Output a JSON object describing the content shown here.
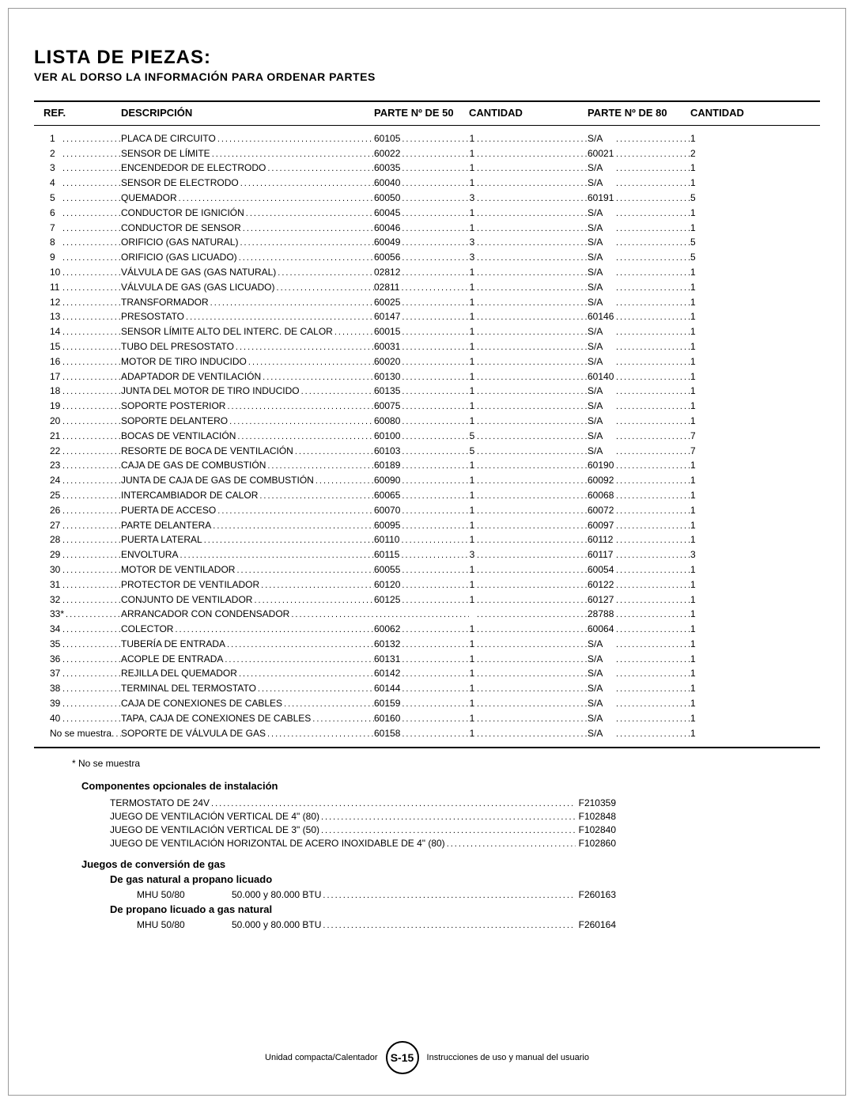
{
  "title": "LISTA DE PIEZAS:",
  "subtitle": "VER AL DORSO LA INFORMACIÓN PARA ORDENAR PARTES",
  "headers": {
    "ref": "REF.",
    "desc": "DESCRIPCIÓN",
    "p50": "PARTE Nº DE 50",
    "q50": "CANTIDAD",
    "p80": "PARTE Nº DE 80",
    "q80": "CANTIDAD"
  },
  "rows": [
    {
      "ref": "1",
      "desc": "PLACA DE CIRCUITO",
      "p50": "60105",
      "q50": "1",
      "p80": "S/A",
      "q80": "1"
    },
    {
      "ref": "2",
      "desc": "SENSOR DE LÍMITE",
      "p50": "60022",
      "q50": "1",
      "p80": "60021",
      "q80": "2"
    },
    {
      "ref": "3",
      "desc": "ENCENDEDOR DE ELECTRODO",
      "p50": "60035",
      "q50": "1",
      "p80": "S/A",
      "q80": "1"
    },
    {
      "ref": "4",
      "desc": "SENSOR DE ELECTRODO",
      "p50": "60040",
      "q50": "1",
      "p80": "S/A",
      "q80": "1"
    },
    {
      "ref": "5",
      "desc": "QUEMADOR",
      "p50": "60050",
      "q50": "3",
      "p80": "60191",
      "q80": "5"
    },
    {
      "ref": "6",
      "desc": "CONDUCTOR DE IGNICIÓN",
      "p50": "60045",
      "q50": "1",
      "p80": "S/A",
      "q80": "1"
    },
    {
      "ref": "7",
      "desc": "CONDUCTOR DE SENSOR",
      "p50": "60046",
      "q50": "1",
      "p80": "S/A",
      "q80": "1"
    },
    {
      "ref": "8",
      "desc": "ORIFICIO (GAS NATURAL)",
      "p50": "60049",
      "q50": "3",
      "p80": "S/A",
      "q80": "5"
    },
    {
      "ref": "9",
      "desc": "ORIFICIO (GAS LICUADO)",
      "p50": "60056",
      "q50": "3",
      "p80": "S/A",
      "q80": "5"
    },
    {
      "ref": "10",
      "desc": "VÁLVULA DE GAS (GAS NATURAL)",
      "p50": "02812",
      "q50": "1",
      "p80": "S/A",
      "q80": "1"
    },
    {
      "ref": "11",
      "desc": "VÁLVULA DE GAS (GAS LICUADO)",
      "p50": "02811",
      "q50": "1",
      "p80": "S/A",
      "q80": "1"
    },
    {
      "ref": "12",
      "desc": "TRANSFORMADOR",
      "p50": "60025",
      "q50": "1",
      "p80": "S/A",
      "q80": "1"
    },
    {
      "ref": "13",
      "desc": "PRESOSTATO",
      "p50": "60147",
      "q50": "1",
      "p80": "60146",
      "q80": "1"
    },
    {
      "ref": "14",
      "desc": "SENSOR LÍMITE ALTO DEL INTERC. DE CALOR",
      "p50": "60015",
      "q50": "1",
      "p80": "S/A",
      "q80": "1"
    },
    {
      "ref": "15",
      "desc": "TUBO DEL PRESOSTATO",
      "p50": "60031",
      "q50": "1",
      "p80": "S/A",
      "q80": "1"
    },
    {
      "ref": "16",
      "desc": "MOTOR DE TIRO INDUCIDO",
      "p50": "60020",
      "q50": "1",
      "p80": "S/A",
      "q80": "1"
    },
    {
      "ref": "17",
      "desc": "ADAPTADOR DE VENTILACIÓN",
      "p50": "60130",
      "q50": "1",
      "p80": "60140",
      "q80": "1"
    },
    {
      "ref": "18",
      "desc": "JUNTA DEL MOTOR DE TIRO INDUCIDO",
      "p50": "60135",
      "q50": "1",
      "p80": "S/A",
      "q80": "1"
    },
    {
      "ref": "19",
      "desc": "SOPORTE POSTERIOR",
      "p50": "60075",
      "q50": "1",
      "p80": "S/A",
      "q80": "1"
    },
    {
      "ref": "20",
      "desc": "SOPORTE DELANTERO",
      "p50": "60080",
      "q50": "1",
      "p80": "S/A",
      "q80": "1"
    },
    {
      "ref": "21",
      "desc": "BOCAS DE VENTILACIÓN",
      "p50": "60100",
      "q50": "5",
      "p80": "S/A",
      "q80": "7"
    },
    {
      "ref": "22",
      "desc": "RESORTE DE BOCA DE VENTILACIÓN",
      "p50": "60103",
      "q50": "5",
      "p80": "S/A",
      "q80": "7"
    },
    {
      "ref": "23",
      "desc": "CAJA DE GAS DE COMBUSTIÓN",
      "p50": "60189",
      "q50": "1",
      "p80": "60190",
      "q80": "1"
    },
    {
      "ref": "24",
      "desc": "JUNTA DE CAJA DE GAS DE COMBUSTIÓN",
      "p50": "60090",
      "q50": "1",
      "p80": "60092",
      "q80": "1"
    },
    {
      "ref": "25",
      "desc": "INTERCAMBIADOR DE CALOR",
      "p50": "60065",
      "q50": "1",
      "p80": "60068",
      "q80": "1"
    },
    {
      "ref": "26",
      "desc": "PUERTA DE ACCESO",
      "p50": "60070",
      "q50": "1",
      "p80": "60072",
      "q80": "1"
    },
    {
      "ref": "27",
      "desc": "PARTE DELANTERA",
      "p50": "60095",
      "q50": "1",
      "p80": "60097",
      "q80": "1"
    },
    {
      "ref": "28",
      "desc": "PUERTA LATERAL",
      "p50": "60110",
      "q50": "1",
      "p80": "60112",
      "q80": "1"
    },
    {
      "ref": "29",
      "desc": "ENVOLTURA",
      "p50": "60115",
      "q50": "3",
      "p80": "60117",
      "q80": "3"
    },
    {
      "ref": "30",
      "desc": "MOTOR DE VENTILADOR",
      "p50": "60055",
      "q50": "1",
      "p80": "60054",
      "q80": "1"
    },
    {
      "ref": "31",
      "desc": "PROTECTOR DE VENTILADOR",
      "p50": "60120",
      "q50": "1",
      "p80": "60122",
      "q80": "1"
    },
    {
      "ref": "32",
      "desc": "CONJUNTO DE VENTILADOR",
      "p50": "60125",
      "q50": "1",
      "p80": "60127",
      "q80": "1"
    },
    {
      "ref": "33*",
      "desc": "ARRANCADOR CON CONDENSADOR",
      "p50": "",
      "q50": "",
      "p80": "28788",
      "q80": "1"
    },
    {
      "ref": "34",
      "desc": "COLECTOR",
      "p50": "60062",
      "q50": "1",
      "p80": "60064",
      "q80": "1"
    },
    {
      "ref": "35",
      "desc": "TUBERÍA DE ENTRADA",
      "p50": "60132",
      "q50": "1",
      "p80": "S/A",
      "q80": "1"
    },
    {
      "ref": "36",
      "desc": "ACOPLE DE ENTRADA",
      "p50": "60131",
      "q50": "1",
      "p80": "S/A",
      "q80": "1"
    },
    {
      "ref": "37",
      "desc": "REJILLA DEL QUEMADOR",
      "p50": "60142",
      "q50": "1",
      "p80": "S/A",
      "q80": "1"
    },
    {
      "ref": "38",
      "desc": "TERMINAL DEL TERMOSTATO",
      "p50": "60144",
      "q50": "1",
      "p80": "S/A",
      "q80": "1"
    },
    {
      "ref": "39",
      "desc": "CAJA DE CONEXIONES DE CABLES",
      "p50": "60159",
      "q50": "1",
      "p80": "S/A",
      "q80": "1"
    },
    {
      "ref": "40",
      "desc": "TAPA, CAJA DE CONEXIONES DE CABLES",
      "p50": "60160",
      "q50": "1",
      "p80": "S/A",
      "q80": "1"
    },
    {
      "ref": "No se muestra.",
      "desc": "SOPORTE DE VÁLVULA DE GAS",
      "p50": "60158",
      "q50": "1",
      "p80": "S/A",
      "q80": "1"
    }
  ],
  "note1": "* No se muestra",
  "optional_header": "Componentes opcionales de instalación",
  "optional": [
    {
      "desc": "TERMOSTATO DE 24V",
      "pn": "F210359"
    },
    {
      "desc": "JUEGO DE VENTILACIÓN VERTICAL DE 4\" (80)",
      "pn": "F102848"
    },
    {
      "desc": "JUEGO DE VENTILACIÓN VERTICAL DE 3\" (50)",
      "pn": "F102840"
    },
    {
      "desc": "JUEGO DE VENTILACIÓN HORIZONTAL DE ACERO INOXIDABLE DE 4\" (80)",
      "pn": "F102860"
    }
  ],
  "gas_header": "Juegos de conversión de gas",
  "gas1_title": "De gas natural a propano licuado",
  "gas1": {
    "model": "MHU 50/80",
    "desc": "50.000 y 80.000 BTU",
    "pn": "F260163"
  },
  "gas2_title": "De propano licuado a gas natural",
  "gas2": {
    "model": "MHU 50/80",
    "desc": "50.000 y 80.000 BTU",
    "pn": "F260164"
  },
  "footer": {
    "left": "Unidad compacta/Calentador",
    "page": "S-15",
    "right": "Instrucciones de uso y manual del usuario"
  }
}
